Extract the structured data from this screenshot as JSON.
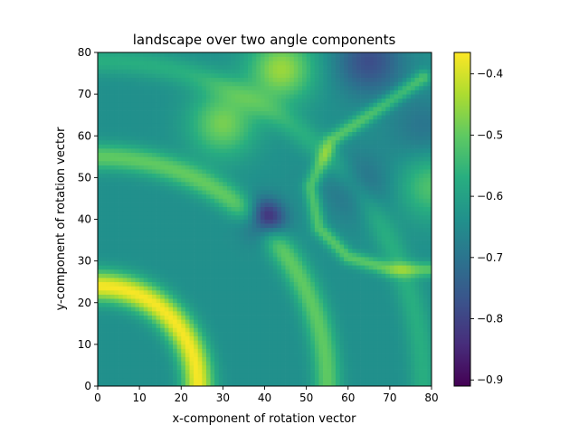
{
  "chart_data": {
    "type": "heatmap",
    "title": "landscape over two angle components",
    "xlabel": "x-component of rotation vector",
    "ylabel": "y-component of rotation vector",
    "xlim": [
      0,
      80
    ],
    "ylim": [
      0,
      80
    ],
    "xticks": [
      "0",
      "10",
      "20",
      "30",
      "40",
      "50",
      "60",
      "70",
      "80"
    ],
    "yticks": [
      "0",
      "10",
      "20",
      "30",
      "40",
      "50",
      "60",
      "70",
      "80"
    ],
    "colorbar": {
      "colormap": "viridis",
      "vmin": -0.91,
      "vmax": -0.365,
      "ticks": [
        "−0.4",
        "−0.5",
        "−0.6",
        "−0.7",
        "−0.8",
        "−0.9"
      ],
      "tick_values": [
        -0.4,
        -0.5,
        -0.6,
        -0.7,
        -0.8,
        -0.9
      ]
    },
    "grid": false,
    "features": [
      {
        "kind": "global-minimum",
        "x": 40,
        "y": 40,
        "value": -0.91
      },
      {
        "kind": "local-minimum",
        "x": 65,
        "y": 78,
        "value": -0.78
      },
      {
        "kind": "local-minimum",
        "x": 62,
        "y": 48,
        "value": -0.72
      },
      {
        "kind": "local-minimum",
        "x": 78,
        "y": 62,
        "value": -0.7
      },
      {
        "kind": "local-maximum",
        "x": 30,
        "y": 63,
        "value": -0.48
      },
      {
        "kind": "local-maximum",
        "x": 44,
        "y": 76,
        "value": -0.45
      },
      {
        "kind": "local-maximum",
        "x": 80,
        "y": 48,
        "value": -0.52
      },
      {
        "kind": "ridge-arc",
        "center": [
          0,
          0
        ],
        "radius": 24,
        "value": -0.37
      },
      {
        "kind": "ridge-arc",
        "center": [
          0,
          0
        ],
        "radius": 55,
        "value": -0.5
      },
      {
        "kind": "ridge-arc",
        "center": [
          0,
          0
        ],
        "radius": 78,
        "value": -0.57
      },
      {
        "kind": "ridge-curve",
        "points": [
          [
            78,
            74
          ],
          [
            68,
            67
          ],
          [
            56,
            59
          ],
          [
            51,
            48
          ],
          [
            53,
            38
          ],
          [
            60,
            31
          ],
          [
            70,
            28
          ],
          [
            80,
            28
          ]
        ],
        "value": -0.51
      },
      {
        "kind": "background-level",
        "value": -0.64
      }
    ]
  }
}
